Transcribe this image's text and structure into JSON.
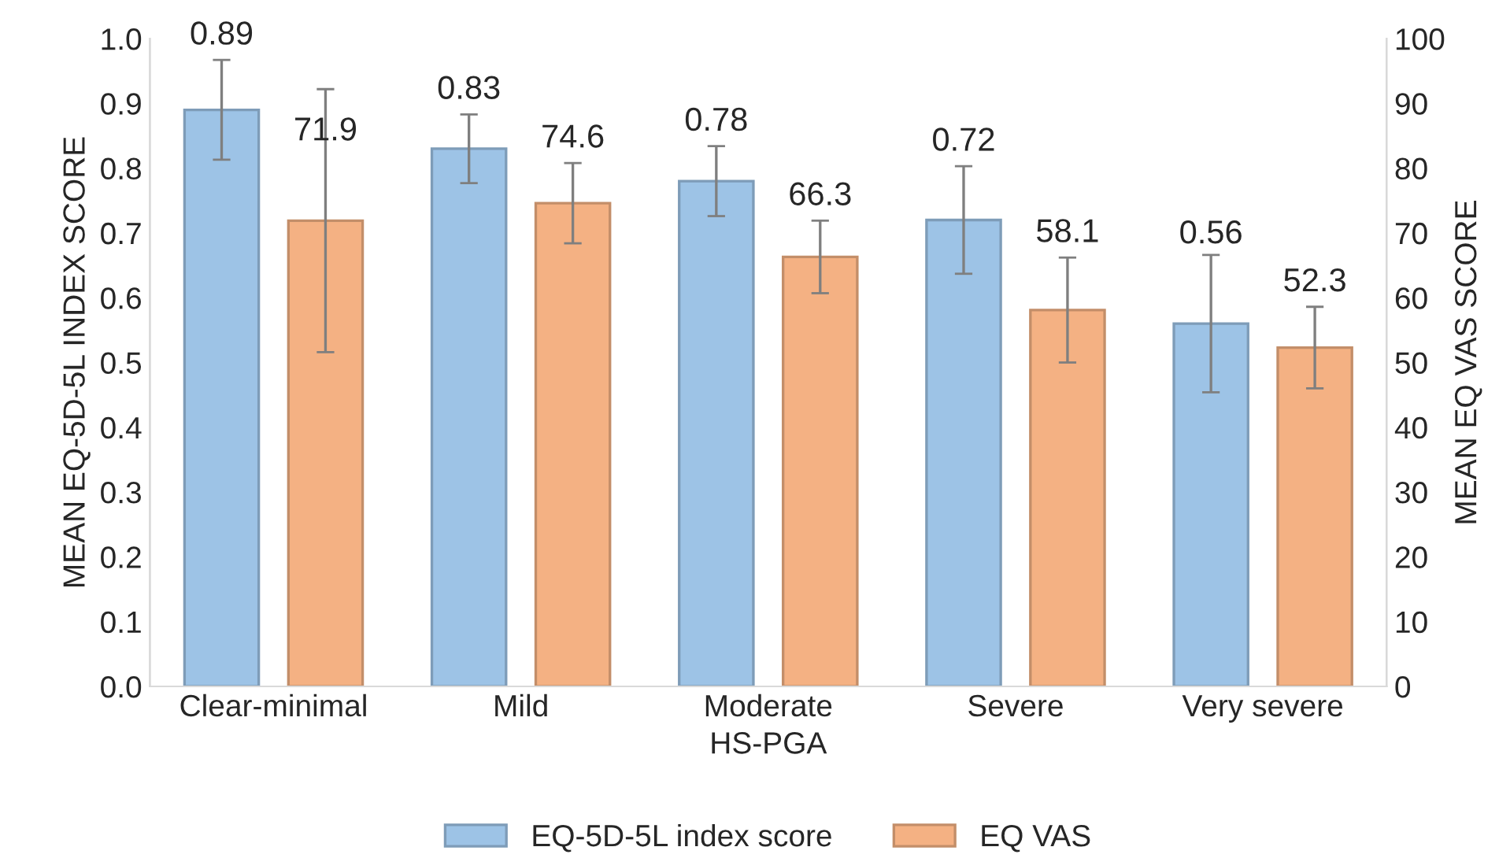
{
  "chart_data": {
    "type": "bar",
    "xlabel": "HS-PGA",
    "ylabel": "MEAN EQ-5D-5L INDEX SCORE",
    "y2label": "MEAN EQ VAS SCORE",
    "categories": [
      "Clear-minimal",
      "Mild",
      "Moderate",
      "Severe",
      "Very severe"
    ],
    "series": [
      {
        "name": "EQ-5D-5L index score",
        "color": "#9dc3e6",
        "values": [
          0.89,
          0.83,
          0.78,
          0.72,
          0.56
        ],
        "errors": [
          0.077,
          0.053,
          0.054,
          0.083,
          0.106
        ]
      },
      {
        "name": "EQ VAS",
        "color": "#f4b183",
        "axis": "y2",
        "values": [
          71.9,
          74.6,
          66.3,
          58.1,
          52.3
        ],
        "errors": [
          20.3,
          6.2,
          5.6,
          8.1,
          6.3
        ]
      }
    ],
    "ylim": [
      0,
      1.0
    ],
    "yticks": [
      {
        "value": 0,
        "label": "0.0"
      },
      0.1,
      0.2,
      0.3,
      0.4,
      0.5,
      0.6,
      0.7,
      0.8,
      0.9,
      {
        "value": 1.0,
        "label": "1.0"
      }
    ],
    "y2lim": [
      0,
      100
    ],
    "y2ticks": [
      0,
      10,
      20,
      30,
      40,
      50,
      60,
      70,
      80,
      90,
      100
    ],
    "data_labels": true,
    "grid": false,
    "legend": "bottom"
  }
}
